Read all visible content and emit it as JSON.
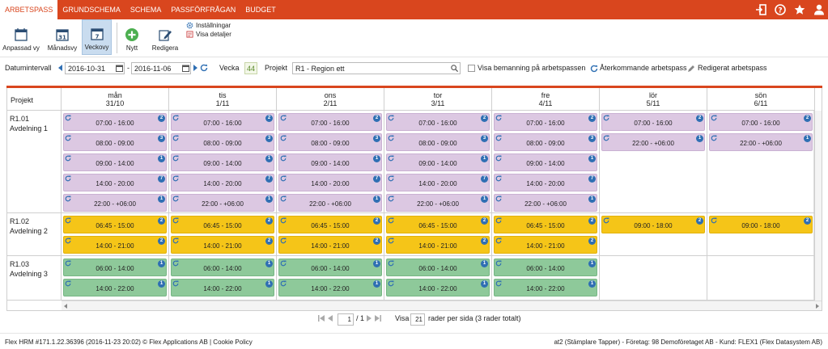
{
  "nav": {
    "tabs": [
      {
        "label": "ARBETSPASS",
        "active": true
      },
      {
        "label": "GRUNDSCHEMA"
      },
      {
        "label": "SCHEMA"
      },
      {
        "label": "PASSFÖRFRÅGAN"
      },
      {
        "label": "BUDGET"
      }
    ],
    "icons": [
      "logout-icon",
      "help-icon",
      "star-icon",
      "user-icon"
    ]
  },
  "toolbar": {
    "anpassad": "Anpassad vy",
    "manadsvy": "Månadsvy",
    "manadsvy_day": "31",
    "veckovy": "Veckovy",
    "veckovy_day": "7",
    "nytt": "Nytt",
    "redigera": "Redigera",
    "installningar": "Inställningar",
    "visa_detaljer": "Visa detaljer"
  },
  "filter": {
    "datumintervall_label": "Datumintervall",
    "date_from": "2016-10-31",
    "date_sep": "-",
    "date_to": "2016-11-06",
    "vecka_label": "Vecka",
    "vecka_value": "44",
    "projekt_label": "Projekt",
    "projekt_value": "R1 - Region ett",
    "visa_bemanning": "Visa bemanning på arbetspassen",
    "aterkommande": "Återkommande arbetspass",
    "redigerat": "Redigerat arbetspass"
  },
  "grid": {
    "project_header": "Projekt",
    "days": [
      {
        "name": "mån",
        "date": "31/10"
      },
      {
        "name": "tis",
        "date": "1/11"
      },
      {
        "name": "ons",
        "date": "2/11"
      },
      {
        "name": "tor",
        "date": "3/11"
      },
      {
        "name": "fre",
        "date": "4/11"
      },
      {
        "name": "lör",
        "date": "5/11"
      },
      {
        "name": "sön",
        "date": "6/11"
      }
    ],
    "rows": [
      {
        "code": "R1.01",
        "name": "Avdelning 1",
        "color": "purple",
        "shifts": [
          [
            {
              "t": "07:00 - 16:00",
              "n": "2"
            },
            {
              "t": "08:00 - 09:00",
              "n": "3"
            },
            {
              "t": "09:00 - 14:00",
              "n": "1"
            },
            {
              "t": "14:00 - 20:00",
              "n": "7"
            },
            {
              "t": "22:00 - +06:00",
              "n": "1"
            }
          ],
          [
            {
              "t": "07:00 - 16:00",
              "n": "2"
            },
            {
              "t": "08:00 - 09:00",
              "n": "3"
            },
            {
              "t": "09:00 - 14:00",
              "n": "1"
            },
            {
              "t": "14:00 - 20:00",
              "n": "7"
            },
            {
              "t": "22:00 - +06:00",
              "n": "1"
            }
          ],
          [
            {
              "t": "07:00 - 16:00",
              "n": "2"
            },
            {
              "t": "08:00 - 09:00",
              "n": "3"
            },
            {
              "t": "09:00 - 14:00",
              "n": "1"
            },
            {
              "t": "14:00 - 20:00",
              "n": "7"
            },
            {
              "t": "22:00 - +06:00",
              "n": "1"
            }
          ],
          [
            {
              "t": "07:00 - 16:00",
              "n": "2"
            },
            {
              "t": "08:00 - 09:00",
              "n": "3"
            },
            {
              "t": "09:00 - 14:00",
              "n": "1"
            },
            {
              "t": "14:00 - 20:00",
              "n": "7"
            },
            {
              "t": "22:00 - +06:00",
              "n": "1"
            }
          ],
          [
            {
              "t": "07:00 - 16:00",
              "n": "2"
            },
            {
              "t": "08:00 - 09:00",
              "n": "3"
            },
            {
              "t": "09:00 - 14:00",
              "n": "1"
            },
            {
              "t": "14:00 - 20:00",
              "n": "7"
            },
            {
              "t": "22:00 - +06:00",
              "n": "1"
            }
          ],
          [
            {
              "t": "07:00 - 16:00",
              "n": "2"
            },
            {
              "t": "22:00 - +06:00",
              "n": "1"
            }
          ],
          [
            {
              "t": "07:00 - 16:00",
              "n": "2"
            },
            {
              "t": "22:00 - +06:00",
              "n": "1"
            }
          ]
        ]
      },
      {
        "code": "R1.02",
        "name": "Avdelning 2",
        "color": "yellow",
        "shifts": [
          [
            {
              "t": "06:45 - 15:00",
              "n": "2"
            },
            {
              "t": "14:00 - 21:00",
              "n": "2"
            }
          ],
          [
            {
              "t": "06:45 - 15:00",
              "n": "2"
            },
            {
              "t": "14:00 - 21:00",
              "n": "2"
            }
          ],
          [
            {
              "t": "06:45 - 15:00",
              "n": "2"
            },
            {
              "t": "14:00 - 21:00",
              "n": "2"
            }
          ],
          [
            {
              "t": "06:45 - 15:00",
              "n": "2"
            },
            {
              "t": "14:00 - 21:00",
              "n": "2"
            }
          ],
          [
            {
              "t": "06:45 - 15:00",
              "n": "2"
            },
            {
              "t": "14:00 - 21:00",
              "n": "2"
            }
          ],
          [
            {
              "t": "09:00 - 18:00",
              "n": "2"
            }
          ],
          [
            {
              "t": "09:00 - 18:00",
              "n": "2"
            }
          ]
        ]
      },
      {
        "code": "R1.03",
        "name": "Avdelning 3",
        "color": "green",
        "shifts": [
          [
            {
              "t": "06:00 - 14:00",
              "n": "1"
            },
            {
              "t": "14:00 - 22:00",
              "n": "1"
            }
          ],
          [
            {
              "t": "06:00 - 14:00",
              "n": "1"
            },
            {
              "t": "14:00 - 22:00",
              "n": "1"
            }
          ],
          [
            {
              "t": "06:00 - 14:00",
              "n": "1"
            },
            {
              "t": "14:00 - 22:00",
              "n": "1"
            }
          ],
          [
            {
              "t": "06:00 - 14:00",
              "n": "1"
            },
            {
              "t": "14:00 - 22:00",
              "n": "1"
            }
          ],
          [
            {
              "t": "06:00 - 14:00",
              "n": "1"
            },
            {
              "t": "14:00 - 22:00",
              "n": "1"
            }
          ],
          [],
          []
        ]
      }
    ]
  },
  "pager": {
    "page_value": "1",
    "page_total": "/ 1",
    "visa_label": "Visa",
    "rows_value": "21",
    "rows_text": "rader per sida (3 rader totalt)"
  },
  "footer": {
    "left": "Flex HRM #171.1.22.36396 (2016-11-23 20:02) © Flex Applications AB | Cookie Policy",
    "right": "at2 (Stämplare Tapper)  -  Företag: 98 Demoföretaget AB  -  Kund: FLEX1 (Flex Datasystem AB)"
  },
  "colors": {
    "brand": "#d9461e",
    "purple": "#dcc8e2",
    "yellow": "#f5c518",
    "green": "#8ec99a",
    "badge": "#2f6fb3"
  }
}
